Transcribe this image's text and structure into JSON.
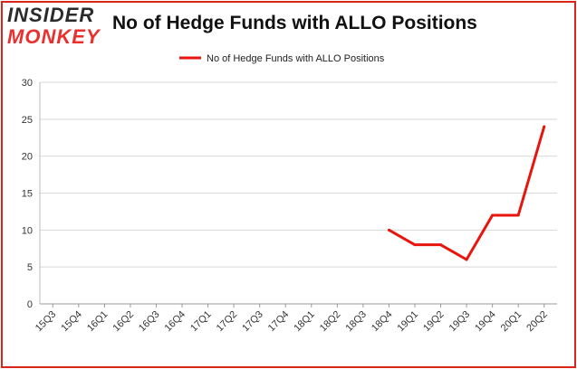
{
  "header": {
    "logo_line1": "INSIDER",
    "logo_line2": "MONKEY",
    "title": "No of Hedge Funds with ALLO Positions"
  },
  "colors": {
    "series": "#e8150f",
    "border": "#d9261c",
    "grid": "#d8d8d8"
  },
  "chart_data": {
    "type": "line",
    "title": "No of Hedge Funds with ALLO Positions",
    "categories": [
      "15Q3",
      "15Q4",
      "16Q1",
      "16Q2",
      "16Q3",
      "16Q4",
      "17Q1",
      "17Q2",
      "17Q3",
      "17Q4",
      "18Q1",
      "18Q2",
      "18Q3",
      "18Q4",
      "19Q1",
      "19Q2",
      "19Q3",
      "19Q4",
      "20Q1",
      "20Q2"
    ],
    "series": [
      {
        "name": "No of Hedge Funds with ALLO Positions",
        "values": [
          null,
          null,
          null,
          null,
          null,
          null,
          null,
          null,
          null,
          null,
          null,
          null,
          null,
          10,
          8,
          8,
          6,
          12,
          12,
          24
        ]
      }
    ],
    "yticks": [
      0,
      5,
      10,
      15,
      20,
      25,
      30
    ],
    "ylim": [
      0,
      30
    ],
    "grid": "horizontal",
    "legend": "top-center"
  }
}
